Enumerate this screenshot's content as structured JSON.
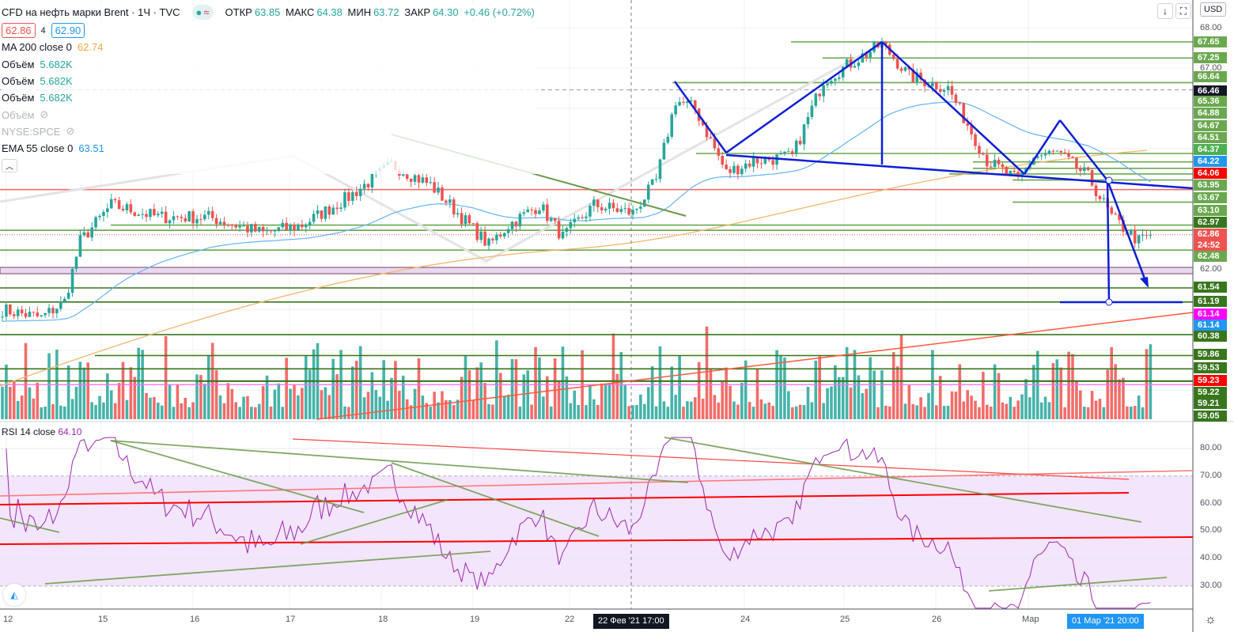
{
  "header": {
    "symbol_title": "CFD на нефть марки Brent · 1Ч · TVC",
    "ohlc": {
      "open_label": "ОТКР",
      "open": "63.85",
      "high_label": "МАКС",
      "high": "64.38",
      "low_label": "МИН",
      "low": "63.72",
      "close_label": "ЗАКР",
      "close": "64.30",
      "change": "+0.46 (+0.72%)"
    },
    "market_icon": "≈"
  },
  "trade": {
    "sell": "62.86",
    "spread": "4",
    "buy": "62.90"
  },
  "indicators": [
    {
      "name": "MA 200 close 0",
      "value": "62.74",
      "color": "#f5a63c"
    },
    {
      "name": "Объём",
      "value": "5.682K",
      "color": "#26a69a"
    },
    {
      "name": "Объём",
      "value": "5.682K",
      "color": "#26a69a"
    },
    {
      "name": "Объём",
      "value": "5.682K",
      "color": "#26a69a"
    },
    {
      "name": "Объём",
      "value": "",
      "hidden": true
    },
    {
      "name": "NYSE:SPCE",
      "value": "",
      "hidden": true
    },
    {
      "name": "EMA 55 close 0",
      "value": "63.51",
      "color": "#2196f3"
    }
  ],
  "rsi": {
    "name": "RSI 14 close",
    "value": "64.10",
    "color": "#9c27b0",
    "ticks": [
      "80.00",
      "70.00",
      "60.00",
      "50.00",
      "40.00",
      "30.00"
    ]
  },
  "toolbar": {
    "currency": "USD"
  },
  "price_axis": {
    "ticks": [
      "68.00",
      "67.00",
      "62.00"
    ],
    "labels": [
      {
        "t": "67.65",
        "c": "#6aa84f"
      },
      {
        "t": "67.25",
        "c": "#6aa84f"
      },
      {
        "t": "66.64",
        "c": "#6aa84f"
      },
      {
        "t": "66.46",
        "c": "#131722"
      },
      {
        "t": "65.36",
        "c": "#6aa84f"
      },
      {
        "t": "64.88",
        "c": "#6aa84f"
      },
      {
        "t": "64.67",
        "c": "#6aa84f"
      },
      {
        "t": "64.51",
        "c": "#6aa84f"
      },
      {
        "t": "64.37",
        "c": "#4caf50"
      },
      {
        "t": "64.22",
        "c": "#2196f3"
      },
      {
        "t": "64.06",
        "c": "#ff0000"
      },
      {
        "t": "63.95",
        "c": "#6aa84f"
      },
      {
        "t": "63.67",
        "c": "#6aa84f"
      },
      {
        "t": "63.10",
        "c": "#6aa84f"
      },
      {
        "t": "62.97",
        "c": "#38761d"
      },
      {
        "t": "62.86",
        "c": "#ef5350",
        "sub": "24:52"
      },
      {
        "t": "62.48",
        "c": "#6aa84f"
      },
      {
        "t": "61.54",
        "c": "#38761d"
      },
      {
        "t": "61.19",
        "c": "#38761d"
      },
      {
        "t": "61.14",
        "c": "#ff00ff"
      },
      {
        "t": "61.14",
        "c": "#2196f3"
      },
      {
        "t": "60.38",
        "c": "#38761d"
      },
      {
        "t": "59.86",
        "c": "#38761d"
      },
      {
        "t": "59.53",
        "c": "#38761d"
      },
      {
        "t": "59.23",
        "c": "#ff0000"
      },
      {
        "t": "59.22",
        "c": "#38761d"
      },
      {
        "t": "59.21",
        "c": "#38761d"
      },
      {
        "t": "59.05",
        "c": "#38761d"
      }
    ]
  },
  "time_axis": {
    "ticks": [
      "12",
      "15",
      "16",
      "17",
      "18",
      "19",
      "22",
      "24",
      "25",
      "26",
      "Мар"
    ],
    "crosshair_badge": "22 Фев '21   17:00",
    "cursor_badge": "01 Мар '21   20:00"
  },
  "chart_data": {
    "type": "candlestick",
    "title": "CFD на нефть марки Brent · 1Ч · TVC",
    "ylim": [
      59.0,
      68.1
    ],
    "close_keypoints": [
      [
        0,
        61.0
      ],
      [
        10,
        60.8
      ],
      [
        16,
        61.2
      ],
      [
        20,
        62.7
      ],
      [
        28,
        63.6
      ],
      [
        40,
        63.3
      ],
      [
        53,
        63.3
      ],
      [
        67,
        62.9
      ],
      [
        77,
        63.1
      ],
      [
        89,
        63.8
      ],
      [
        100,
        64.6
      ],
      [
        110,
        64.1
      ],
      [
        118,
        63.3
      ],
      [
        125,
        62.6
      ],
      [
        130,
        63.1
      ],
      [
        138,
        63.6
      ],
      [
        144,
        62.8
      ],
      [
        152,
        63.6
      ],
      [
        162,
        63.4
      ],
      [
        168,
        64.2
      ],
      [
        173,
        66.2
      ],
      [
        178,
        66.0
      ],
      [
        186,
        64.4
      ],
      [
        193,
        64.7
      ],
      [
        203,
        64.8
      ],
      [
        211,
        66.7
      ],
      [
        226,
        67.6
      ],
      [
        233,
        66.8
      ],
      [
        243,
        66.5
      ],
      [
        253,
        64.7
      ],
      [
        261,
        64.2
      ],
      [
        265,
        64.8
      ],
      [
        271,
        64.9
      ],
      [
        279,
        64.3
      ],
      [
        285,
        63.3
      ],
      [
        292,
        62.7
      ],
      [
        295,
        62.86
      ]
    ],
    "bars": 296
  }
}
